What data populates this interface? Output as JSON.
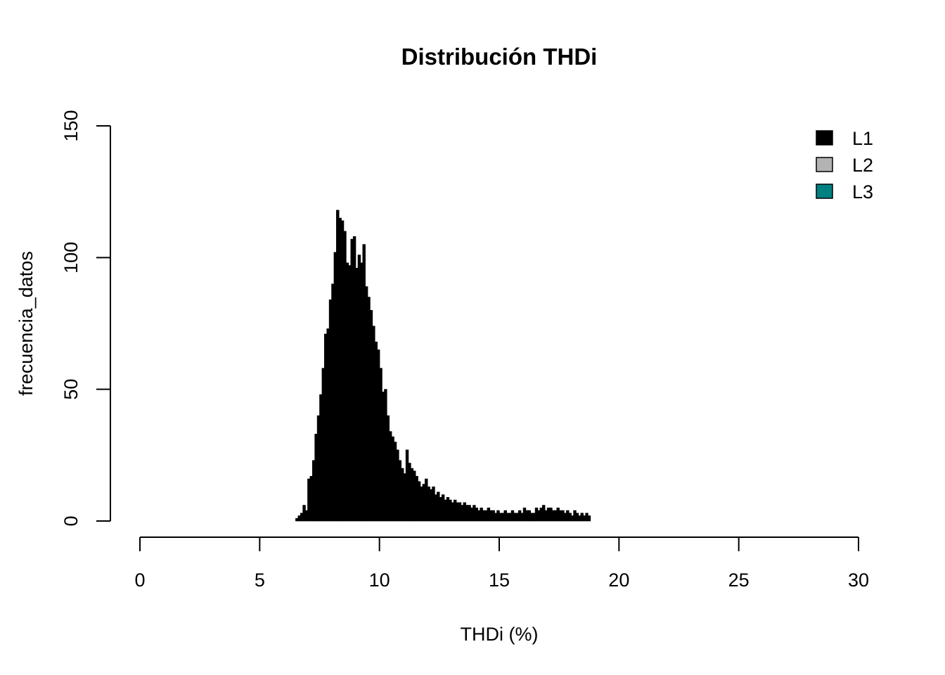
{
  "chart_data": {
    "type": "bar",
    "title": "Distribución THDi",
    "xlabel": "THDi (%)",
    "ylabel": "frecuencia_datos",
    "xlim": [
      0,
      30
    ],
    "ylim": [
      0,
      150
    ],
    "x_ticks": [
      "0",
      "5",
      "10",
      "15",
      "20",
      "25",
      "30"
    ],
    "y_ticks": [
      "0",
      "50",
      "100",
      "150"
    ],
    "legend_position": "top-right",
    "legend": [
      {
        "label": "L1",
        "color": "#000000"
      },
      {
        "label": "L2",
        "color": "#b3b3b3"
      },
      {
        "label": "L3",
        "color": "#008080"
      }
    ],
    "series": [
      {
        "name": "L1",
        "color": "#000000",
        "bin_start": 6.5,
        "bin_width": 0.1,
        "values": [
          1,
          2,
          3,
          6,
          4,
          16,
          17,
          23,
          33,
          40,
          48,
          58,
          71,
          73,
          84,
          90,
          102,
          118,
          115,
          114,
          110,
          98,
          97,
          107,
          108,
          96,
          101,
          98,
          105,
          89,
          85,
          80,
          74,
          68,
          65,
          58,
          49,
          50,
          40,
          34,
          32,
          30,
          27,
          23,
          20,
          18,
          27,
          22,
          20,
          19,
          17,
          15,
          13,
          14,
          16,
          13,
          12,
          13,
          10,
          11,
          9,
          10,
          8,
          9,
          8,
          7,
          8,
          7,
          7,
          6,
          7,
          6,
          6,
          5,
          6,
          5,
          4,
          5,
          4,
          4,
          5,
          4,
          4,
          3,
          4,
          3,
          3,
          4,
          3,
          3,
          4,
          3,
          3,
          4,
          3,
          5,
          4,
          4,
          3,
          3,
          5,
          4,
          5,
          6,
          4,
          5,
          5,
          4,
          4,
          5,
          4,
          4,
          3,
          4,
          3,
          2,
          4,
          3,
          2,
          3,
          2,
          3,
          2
        ]
      }
    ]
  }
}
